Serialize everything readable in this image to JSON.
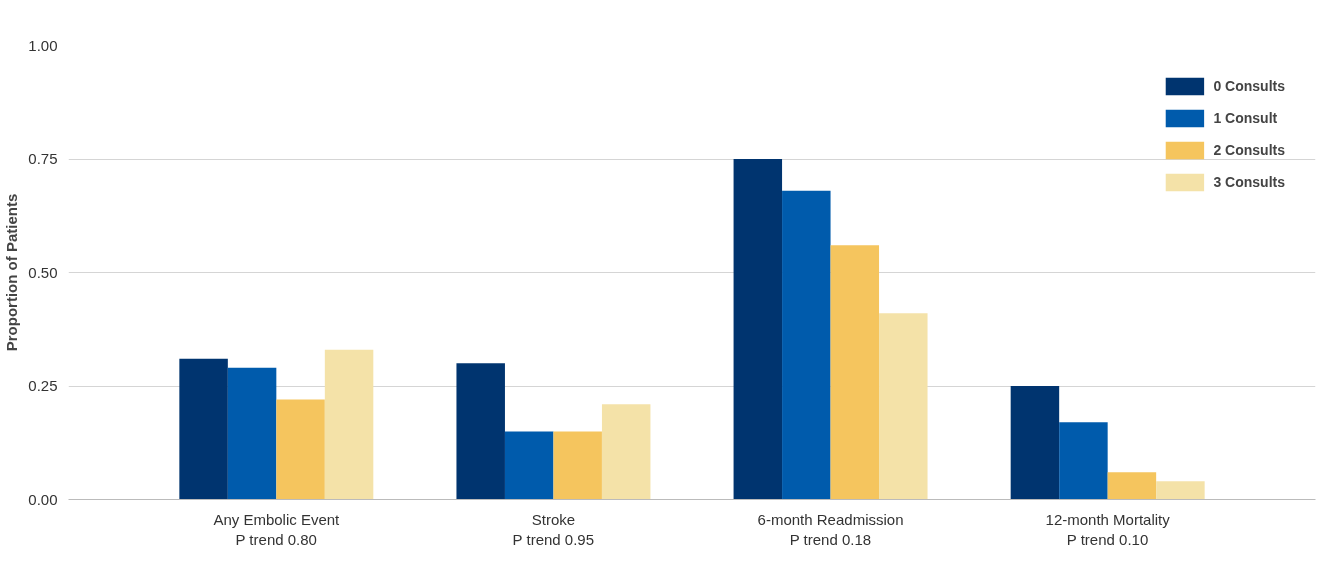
{
  "chart_data": {
    "type": "bar",
    "ylabel": "Proportion of Patients",
    "categories": [
      "Any Embolic Event\nP trend 0.80",
      "Stroke\nP trend 0.95",
      "6-month Readmission\nP trend 0.18",
      "12-month Mortality\nP trend 0.10"
    ],
    "series": [
      {
        "name": "0 Consults",
        "color": "#00346f",
        "values": [
          0.31,
          0.3,
          0.75,
          0.25
        ]
      },
      {
        "name": "1 Consult",
        "color": "#005bac",
        "values": [
          0.29,
          0.15,
          0.68,
          0.17
        ]
      },
      {
        "name": "2 Consults",
        "color": "#f5c55e",
        "values": [
          0.22,
          0.15,
          0.56,
          0.06
        ]
      },
      {
        "name": "3 Consults",
        "color": "#f4e2a8",
        "values": [
          0.33,
          0.21,
          0.41,
          0.04
        ]
      }
    ],
    "ylim": [
      0,
      1
    ],
    "yticks": [
      {
        "value": 0,
        "label": "0.00"
      },
      {
        "value": 0.25,
        "label": "0.25"
      },
      {
        "value": 0.5,
        "label": "0.50"
      },
      {
        "value": 0.75,
        "label": "0.75"
      },
      {
        "value": 1,
        "label": "1.00"
      }
    ],
    "grid": "y",
    "legend": "top right"
  }
}
